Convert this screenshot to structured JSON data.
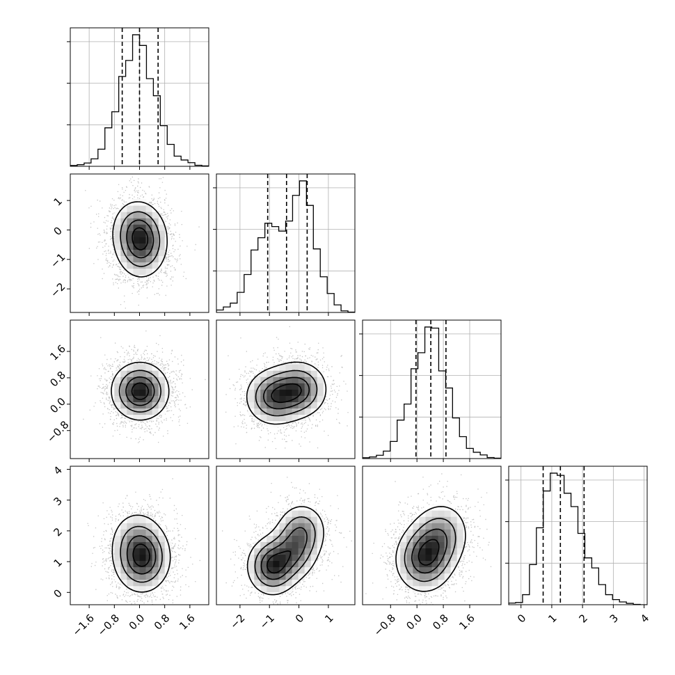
{
  "chart_data": {
    "type": "corner",
    "title": "",
    "n_params": 4,
    "grid": true,
    "colors": {
      "ink": "#000000",
      "grid": "#b0b0b0",
      "points": "#7a7a7a",
      "density_min": "#ffffff",
      "density_max": "#000000"
    },
    "quantiles": [
      0.16,
      0.5,
      0.84
    ],
    "params": [
      {
        "name": "",
        "range": [
          -2.2,
          2.2
        ],
        "ticks": [
          -1.6,
          -0.8,
          0.0,
          0.8,
          1.6
        ],
        "tick_labels": [
          "−1.6",
          "−0.8",
          "0.0",
          "0.8",
          "1.6"
        ],
        "quantile_values": [
          -0.55,
          0.0,
          0.59
        ],
        "hist_max": 1230,
        "hist": [
          8,
          15,
          31,
          70,
          160,
          360,
          510,
          840,
          990,
          1230,
          1130,
          820,
          660,
          380,
          205,
          95,
          59,
          34,
          10,
          4
        ]
      },
      {
        "name": "",
        "range": [
          -2.8,
          1.9
        ],
        "ticks": [
          -2,
          -1,
          0,
          1
        ],
        "tick_labels": [
          "−2",
          "−1",
          "0",
          "1"
        ],
        "quantile_values": [
          -1.06,
          -0.42,
          0.28
        ],
        "hist_max": 1180,
        "hist": [
          22,
          49,
          84,
          180,
          340,
          560,
          670,
          800,
          770,
          730,
          820,
          1050,
          1180,
          960,
          570,
          320,
          170,
          68,
          14,
          3
        ]
      },
      {
        "name": "",
        "range": [
          -1.65,
          2.55
        ],
        "ticks": [
          -0.8,
          0.0,
          0.8,
          1.6
        ],
        "tick_labels": [
          "−0.8",
          "0.0",
          "0.8",
          "1.6"
        ],
        "quantile_values": [
          -0.03,
          0.42,
          0.88
        ],
        "hist_max": 1230,
        "hist": [
          8,
          15,
          31,
          70,
          160,
          360,
          510,
          840,
          990,
          1230,
          1220,
          820,
          660,
          380,
          205,
          95,
          59,
          34,
          10,
          4
        ]
      },
      {
        "name": "",
        "range": [
          -0.4,
          4.1
        ],
        "ticks": [
          0,
          1,
          2,
          3,
          4
        ],
        "tick_labels": [
          "0",
          "1",
          "2",
          "3",
          "4"
        ],
        "quantile_values": [
          0.72,
          1.28,
          2.05
        ],
        "hist_max": 1180,
        "hist": [
          15,
          20,
          90,
          360,
          690,
          1020,
          1180,
          1160,
          1000,
          880,
          640,
          420,
          330,
          180,
          90,
          46,
          25,
          12,
          3,
          0
        ]
      }
    ],
    "pairs": [
      {
        "row": 1,
        "col": 0,
        "spread": [
          0.42,
          0.56
        ],
        "blobs": [
          [
            -0.1,
            0.0,
            1.0
          ],
          [
            0.05,
            -0.7,
            0.8
          ],
          [
            0.15,
            -0.3,
            0.6
          ]
        ]
      },
      {
        "row": 2,
        "col": 0,
        "spread": [
          0.46,
          0.44
        ],
        "blobs": [
          [
            0.0,
            0.42,
            1.0
          ],
          [
            0.05,
            0.35,
            0.6
          ]
        ]
      },
      {
        "row": 2,
        "col": 1,
        "spread": [
          0.5,
          0.44
        ],
        "blobs": [
          [
            -0.85,
            0.22,
            1.0
          ],
          [
            0.0,
            0.45,
            1.0
          ]
        ]
      },
      {
        "row": 3,
        "col": 0,
        "spread": [
          0.45,
          0.55
        ],
        "blobs": [
          [
            0.05,
            1.0,
            1.0
          ],
          [
            -0.1,
            1.7,
            0.6
          ],
          [
            0.2,
            1.2,
            0.5
          ]
        ]
      },
      {
        "row": 3,
        "col": 1,
        "spread": [
          0.44,
          0.48
        ],
        "blobs": [
          [
            -0.9,
            0.85,
            1.0
          ],
          [
            -0.2,
            1.3,
            0.6
          ],
          [
            0.1,
            2.0,
            0.6
          ]
        ]
      },
      {
        "row": 3,
        "col": 2,
        "spread": [
          0.45,
          0.55
        ],
        "blobs": [
          [
            0.2,
            1.05,
            1.0
          ],
          [
            0.55,
            1.6,
            0.5
          ],
          [
            0.8,
            2.0,
            0.4
          ]
        ]
      }
    ]
  }
}
